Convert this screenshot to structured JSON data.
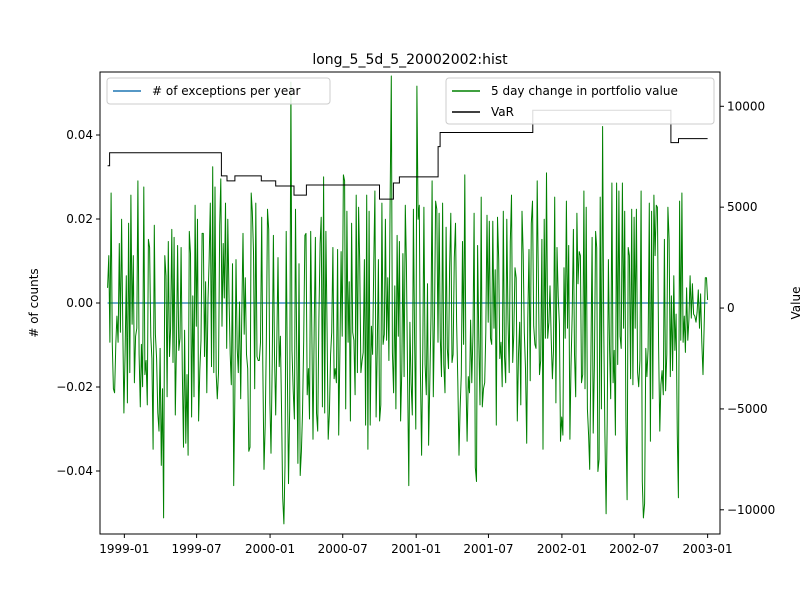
{
  "chart_data": {
    "type": "line",
    "title": "long_5_5d_5_20002002:hist",
    "ylabel_left": "# of counts",
    "ylabel_right": "Value",
    "xlim": [
      "1998-11-01",
      "2003-02-01"
    ],
    "ylim_left": [
      -0.055,
      0.055
    ],
    "ylim_right": [
      -11200,
      11700
    ],
    "x_ticks": [
      "1999-01",
      "1999-07",
      "2000-01",
      "2000-07",
      "2001-01",
      "2001-07",
      "2002-01",
      "2002-07",
      "2003-01"
    ],
    "y_ticks_left": [
      -0.04,
      -0.02,
      0.0,
      0.02,
      0.04
    ],
    "y_ticks_left_labels": [
      "−0.04",
      "−0.02",
      "0.00",
      "0.02",
      "0.04"
    ],
    "y_ticks_right": [
      -10000,
      -5000,
      0,
      5000,
      10000
    ],
    "y_ticks_right_labels": [
      "−10000",
      "−5000",
      "0",
      "5000",
      "10000"
    ],
    "legend_left": {
      "placement": "top-left",
      "entries": [
        {
          "label": "# of exceptions per year",
          "color": "#1f77b4"
        }
      ]
    },
    "legend_right": {
      "placement": "top-right",
      "entries": [
        {
          "label": "5 day change in portfolio value",
          "color": "#008000"
        },
        {
          "label": "VaR",
          "color": "#000000"
        }
      ]
    },
    "series": [
      {
        "name": "# of exceptions per year",
        "axis": "left",
        "color": "#1f77b4",
        "x": [
          "1998-11-20",
          "2003-01-01"
        ],
        "y": [
          0,
          0
        ]
      },
      {
        "name": "VaR",
        "axis": "right",
        "color": "#000000",
        "step": true,
        "x": [
          "1998-11-20",
          "1998-11-25",
          "1999-09-01",
          "1999-09-15",
          "1999-10-05",
          "1999-10-12",
          "1999-12-10",
          "2000-01-15",
          "2000-03-01",
          "2000-04-01",
          "2000-10-01",
          "2000-11-05",
          "2000-11-20",
          "2001-02-25",
          "2001-03-02",
          "2001-10-01",
          "2001-10-20",
          "2002-10-01",
          "2002-10-20",
          "2003-01-01"
        ],
        "y": [
          7050,
          7700,
          6550,
          6300,
          6550,
          6550,
          6300,
          6050,
          5600,
          6100,
          5400,
          6200,
          6500,
          8000,
          8700,
          8700,
          9800,
          8200,
          8400,
          8400
        ]
      },
      {
        "name": "5 day change in portfolio value",
        "axis": "right",
        "color": "#008000",
        "x_start": "1998-11-20",
        "x_end": "2003-01-01",
        "y": [
          1000,
          2600,
          -1700,
          5700,
          -1800,
          -4000,
          -4200,
          -1800,
          -400,
          -1700,
          3200,
          -1200,
          4400,
          -1000,
          -5200,
          -2200,
          1600,
          -4700,
          4200,
          -3200,
          5600,
          -800,
          2600,
          -3700,
          -1400,
          -1000,
          6300,
          -2300,
          -4900,
          -1800,
          -3900,
          6000,
          -3300,
          -2600,
          -4800,
          3400,
          3000,
          -1400,
          -2500,
          -7000,
          4100,
          -1300,
          -2500,
          -5200,
          -6100,
          -2000,
          -7800,
          -4000,
          -10400,
          2600,
          1600,
          -4400,
          3300,
          -2400,
          -1000,
          3900,
          -2700,
          3500,
          -5300,
          -1700,
          3100,
          -2100,
          -1500,
          3000,
          -3100,
          -6900,
          -1100,
          -6700,
          -3300,
          -7300,
          3800,
          2700,
          -5400,
          600,
          -4400,
          5100,
          -900,
          4400,
          -5600,
          -3100,
          -1600,
          3700,
          3700,
          -2400,
          1300,
          -4200,
          400,
          2300,
          5200,
          -2900,
          7000,
          -3200,
          6000,
          -3300,
          -4500,
          -3200,
          4100,
          6400,
          -900,
          3200,
          500,
          5200,
          -2000,
          4400,
          600,
          -2300,
          -3800,
          2200,
          -8800,
          -4600,
          2400,
          -2000,
          -3200,
          300,
          -4500,
          -300,
          3700,
          -1300,
          1500,
          -2300,
          -3000,
          -7100,
          -6900,
          5700,
          4800,
          2800,
          -4000,
          5200,
          -2400,
          -2600,
          -2600,
          -1700,
          4500,
          -2800,
          -8000,
          -5800,
          -1400,
          4900,
          3900,
          -4700,
          -7200,
          -2800,
          3600,
          -2300,
          -5300,
          -1400,
          2500,
          -2900,
          -1400,
          -4900,
          -9400,
          -10700,
          -7800,
          3800,
          -3400,
          -8700,
          -5000,
          11200,
          -2100,
          -4100,
          -5500,
          4900,
          -2000,
          -7700,
          2200,
          -8300,
          -7100,
          -5200,
          -1600,
          3600,
          3700,
          -4300,
          -3000,
          -5500,
          3800,
          -1400,
          -6500,
          -1000,
          3500,
          -5200,
          -6100,
          -500,
          3200,
          4500,
          -4900,
          6500,
          -5200,
          3800,
          -1200,
          -6500,
          -5200,
          -2300,
          -1200,
          3000,
          -3500,
          -3000,
          -3700,
          2900,
          -6300,
          -2200,
          2800,
          -1400,
          6600,
          6300,
          -5000,
          4800,
          -1700,
          1300,
          -5600,
          4200,
          -1200,
          -1600,
          -4300,
          5600,
          -3200,
          5000,
          2300,
          -3200,
          -2600,
          -2200,
          2400,
          -5800,
          5600,
          -7000,
          4800,
          -5800,
          -900,
          -2300,
          2300,
          5800,
          -5400,
          -1900,
          2400,
          -5600,
          -4800,
          5200,
          -1800,
          -1300,
          4400,
          -1600,
          1500,
          -2600,
          5200,
          11500,
          -2200,
          -4200,
          1100,
          -5000,
          3600,
          -1400,
          3300,
          -5600,
          -3100,
          2700,
          -3400,
          5100,
          2200,
          -3500,
          -8800,
          -700,
          -3700,
          -5300,
          4900,
          -1600,
          -6000,
          11000,
          4400,
          5100,
          -3100,
          -7300,
          -2100,
          5000,
          -2800,
          -4300,
          1200,
          -6800,
          -3700,
          -400,
          6300,
          -4400,
          -500,
          5300,
          4900,
          -1700,
          4700,
          -1500,
          -3400,
          5200,
          -2800,
          -4200,
          4000,
          -2000,
          -3000,
          2000,
          4700,
          -2700,
          -2300,
          2500,
          4200,
          -700,
          -3600,
          -7300,
          -5000,
          -3300,
          3300,
          -1800,
          6600,
          -3700,
          -6600,
          -3400,
          -4200,
          -600,
          -3700,
          -1200,
          4700,
          -7900,
          -8600,
          3100,
          -1600,
          -4800,
          5500,
          -4900,
          -4000,
          -3700,
          -1200,
          4600,
          -700,
          4300,
          -1500,
          -1800,
          4300,
          -1000,
          1900,
          -5800,
          4500,
          2400,
          -2500,
          -1700,
          -3900,
          4800,
          -2400,
          -3700,
          4400,
          -600,
          -3200,
          3300,
          5600,
          -2700,
          -1300,
          2000,
          1500,
          -5600,
          -2300,
          -700,
          -4800,
          4800,
          2700,
          -1200,
          -3000,
          -6700,
          -500,
          2900,
          -3600,
          4200,
          5300,
          -900,
          -1800,
          -2000,
          6300,
          1300,
          -3300,
          -2600,
          3400,
          -7000,
          4400,
          -1500,
          6700,
          -1500,
          -700,
          1100,
          -1500,
          -3500,
          -2100,
          5500,
          -4700,
          3000,
          600,
          -800,
          -6600,
          -5400,
          -6300,
          2000,
          -1500,
          5300,
          -1000,
          3100,
          -6500,
          -2900,
          -300,
          3900,
          -2300,
          -4400,
          4700,
          1200,
          2800,
          2600,
          -3700,
          -3300,
          5800,
          -4000,
          5000,
          -5000,
          -6300,
          -8000,
          -2500,
          3500,
          -6200,
          -2800,
          3800,
          3000,
          -8100,
          -7500,
          5500,
          -5000,
          9000,
          -800,
          -6200,
          -10200,
          -5600,
          2400,
          -2100,
          -4500,
          6200,
          -3700,
          -2100,
          -6300,
          6200,
          -2800,
          5800,
          -1400,
          -2000,
          6200,
          -1000,
          4800,
          -5500,
          -9500,
          3000,
          2600,
          -3500,
          4900,
          -3800,
          4500,
          -1000,
          4900,
          -3200,
          -3900,
          -2600,
          5800,
          -8600,
          -10400,
          -9700,
          -2000,
          -3400,
          -2000,
          5200,
          -6600,
          4800,
          -4500,
          5600,
          2600,
          5100,
          5000,
          -1900,
          -6100,
          -3800,
          -3100,
          -4300,
          3400,
          -4100,
          -2300,
          5000,
          3400,
          -3400,
          600,
          -3100,
          1600,
          -2100,
          -300,
          -6300,
          -9400,
          5300,
          -1600,
          5700,
          -1700,
          -400,
          -2200,
          1000,
          -1600,
          -600,
          1600,
          -500,
          1200,
          -300,
          -400,
          -700,
          -200,
          900,
          -1000,
          700,
          -1700,
          -3300,
          -1000,
          1500,
          1500,
          400
        ]
      }
    ]
  }
}
